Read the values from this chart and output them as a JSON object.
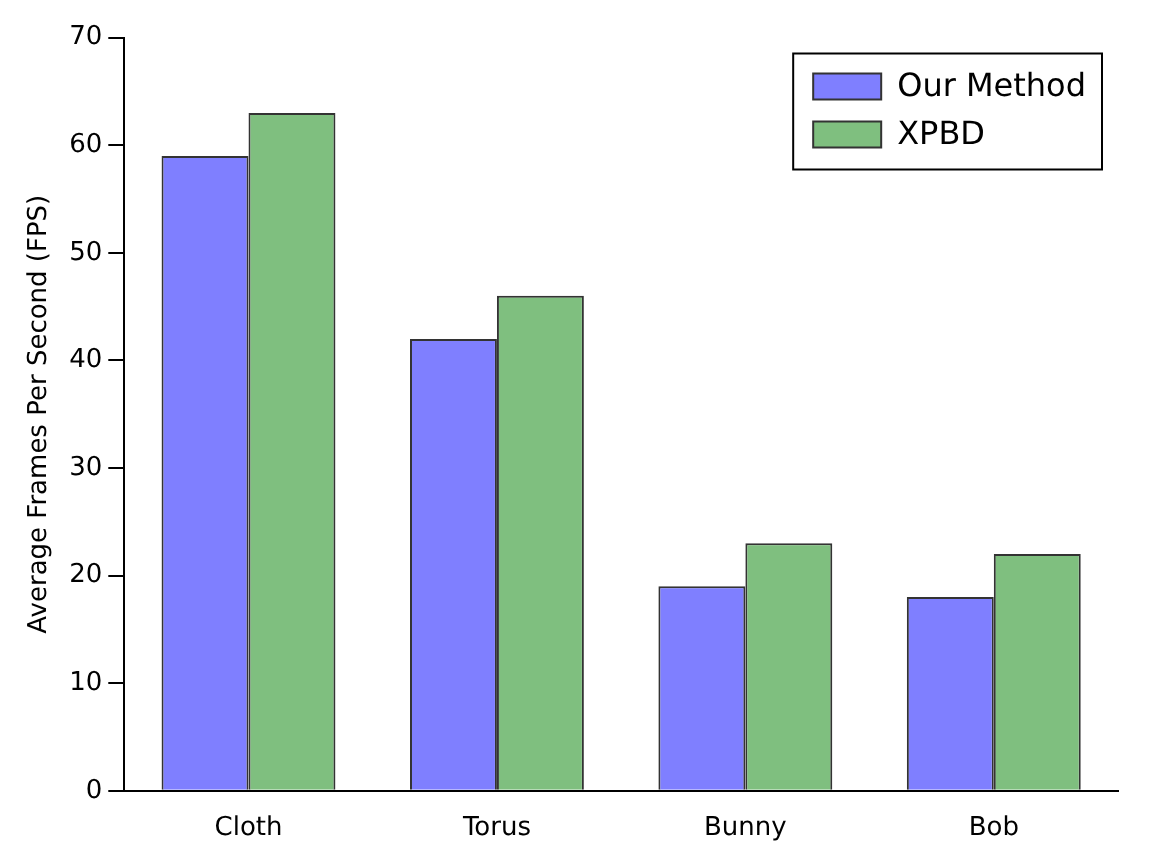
{
  "chart_data": {
    "type": "bar",
    "ylabel": "Average Frames Per Second (FPS)",
    "categories": [
      "Cloth",
      "Torus",
      "Bunny",
      "Bob"
    ],
    "series": [
      {
        "name": "Our Method",
        "color": "#7f7fff",
        "values": [
          59,
          42,
          19,
          18
        ]
      },
      {
        "name": "XPBD",
        "color": "#7fbf7f",
        "values": [
          63,
          46,
          23,
          22
        ]
      }
    ],
    "ylim": [
      0,
      70
    ],
    "yticks": [
      0,
      10,
      20,
      30,
      40,
      50,
      60,
      70
    ],
    "grid": false,
    "legend": "top right"
  }
}
